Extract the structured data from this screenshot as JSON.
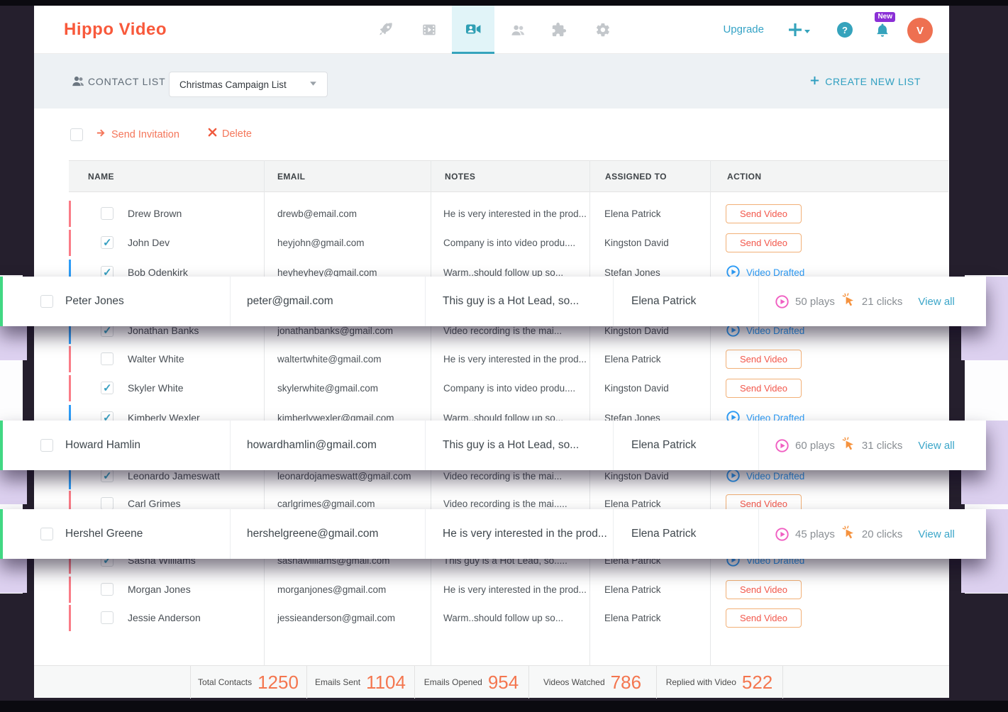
{
  "brand": {
    "logo_text": "Hippo Video"
  },
  "navbar": {
    "upgrade_label": "Upgrade",
    "help_glyph": "?",
    "new_badge": "New",
    "avatar_initial": "V",
    "active_tab": "video-contacts"
  },
  "list_header": {
    "label": "CONTACT LIST",
    "selected_list": "Christmas Campaign List",
    "create_new_label": "CREATE NEW LIST"
  },
  "toolbar": {
    "send_invitation_label": "Send Invitation",
    "delete_label": "Delete"
  },
  "table": {
    "columns": [
      "NAME",
      "EMAIL",
      "NOTES",
      "ASSIGNED TO",
      "ACTION"
    ],
    "rows": [
      {
        "name": "Drew Brown",
        "email": "drewb@email.com",
        "notes": "He is very interested in the prod...",
        "assigned_to": "Elena Patrick",
        "checked": false,
        "accent": "red",
        "action": {
          "type": "button",
          "label": "Send Video"
        }
      },
      {
        "name": "John Dev",
        "email": "heyjohn@gmail.com",
        "notes": "Company is into video produ....",
        "assigned_to": "Kingston David",
        "checked": true,
        "accent": "red",
        "action": {
          "type": "button",
          "label": "Send Video"
        }
      },
      {
        "name": "Bob Odenkirk",
        "email": "heyheyhey@gmail.com",
        "notes": "Warm..should follow up so...",
        "assigned_to": "Stefan Jones",
        "checked": true,
        "accent": "blue",
        "action": {
          "type": "link",
          "label": "Video Drafted"
        }
      },
      {
        "name": "Jonathan Banks",
        "email": "jonathanbanks@gmail.com",
        "notes": "Video recording is the mai...",
        "assigned_to": "Kingston David",
        "checked": true,
        "accent": "blue",
        "action": {
          "type": "link",
          "label": "Video Drafted"
        }
      },
      {
        "name": "Walter White",
        "email": "waltertwhite@gmail.com",
        "notes": "He is very interested in the prod...",
        "assigned_to": "Elena Patrick",
        "checked": false,
        "accent": "red",
        "action": {
          "type": "button",
          "label": "Send Video"
        }
      },
      {
        "name": "Skyler White",
        "email": "skylerwhite@gmail.com",
        "notes": "Company is into video produ....",
        "assigned_to": "Kingston David",
        "checked": true,
        "accent": "red",
        "action": {
          "type": "button",
          "label": "Send Video"
        }
      },
      {
        "name": "Kimberly Wexler",
        "email": "kimberlywexler@gmail.com",
        "notes": "Warm..should follow up so...",
        "assigned_to": "Stefan Jones",
        "checked": true,
        "accent": "blue",
        "action": {
          "type": "link",
          "label": "Video Drafted"
        }
      },
      {
        "name": "Leonardo Jameswatt",
        "email": "leonardojameswatt@gmail.com",
        "notes": "Video recording is the mai...",
        "assigned_to": "Kingston David",
        "checked": true,
        "accent": "blue",
        "action": {
          "type": "link",
          "label": "Video Drafted"
        }
      },
      {
        "name": "Carl Grimes",
        "email": "carlgrimes@gmail.com",
        "notes": "Video recording is the mai.....",
        "assigned_to": "Elena Patrick",
        "checked": false,
        "accent": "red",
        "action": {
          "type": "button",
          "label": "Send Video"
        }
      },
      {
        "name": "Sasha Williams",
        "email": "sashawilliams@gmail.com",
        "notes": "This guy is a Hot Lead, so.....",
        "assigned_to": "Elena Patrick",
        "checked": true,
        "accent": "red",
        "action": {
          "type": "link",
          "label": "Video Drafted"
        }
      },
      {
        "name": "Morgan Jones",
        "email": "morganjones@gmail.com",
        "notes": "He is very interested in the prod...",
        "assigned_to": "Elena Patrick",
        "checked": false,
        "accent": "red",
        "action": {
          "type": "button",
          "label": "Send Video"
        }
      },
      {
        "name": "Jessie Anderson",
        "email": "jessieanderson@gmail.com",
        "notes": "Warm..should follow up so...",
        "assigned_to": "Elena Patrick",
        "checked": false,
        "accent": "red",
        "action": {
          "type": "button",
          "label": "Send Video"
        }
      }
    ]
  },
  "overlay_rows": [
    {
      "name": "Peter Jones",
      "email": "peter@gmail.com",
      "notes": "This guy is a Hot Lead, so...",
      "assigned_to": "Elena Patrick",
      "plays": "50 plays",
      "clicks": "21 clicks",
      "view_all": "View all",
      "checked": false
    },
    {
      "name": "Howard Hamlin",
      "email": "howardhamlin@gmail.com",
      "notes": "This guy is a Hot Lead, so...",
      "assigned_to": "Elena Patrick",
      "plays": "60 plays",
      "clicks": "31 clicks",
      "view_all": "View all",
      "checked": false
    },
    {
      "name": "Hershel Greene",
      "email": "hershelgreene@gmail.com",
      "notes": "He is very interested in the prod...",
      "assigned_to": "Elena Patrick",
      "plays": "45 plays",
      "clicks": "20 clicks",
      "view_all": "View all",
      "checked": false
    }
  ],
  "footer": {
    "stats": [
      {
        "label": "Total Contacts",
        "value": "1250"
      },
      {
        "label": "Emails Sent",
        "value": "1104"
      },
      {
        "label": "Emails Opened",
        "value": "954"
      },
      {
        "label": "Videos Watched",
        "value": "786"
      },
      {
        "label": "Replied with Video",
        "value": "522"
      }
    ]
  },
  "colors": {
    "logo_orange": "#f8593b",
    "accent_teal": "#35a3bc",
    "active_tab_bg": "#e1f4f8",
    "subheader_bg": "#edf1f4",
    "toolbar_orange": "#f4765a",
    "row_accent_red": "#fa7c87",
    "row_accent_blue": "#2e9df7",
    "overlay_accent_green": "#41d883",
    "drafted_blue": "#2e9df7",
    "send_video_border": "#f2b077",
    "send_video_text": "#f2574b",
    "plays_pink": "#f05fc2",
    "clicks_orange": "#f5923e",
    "view_all_teal": "#3ba6c9",
    "footer_number_orange": "#f4764f",
    "new_badge_purple": "#8b2fd6",
    "avatar_orange": "#ee7051",
    "frame_dark": "#251f2d",
    "artifact_lavender": "#ddd1f0"
  }
}
